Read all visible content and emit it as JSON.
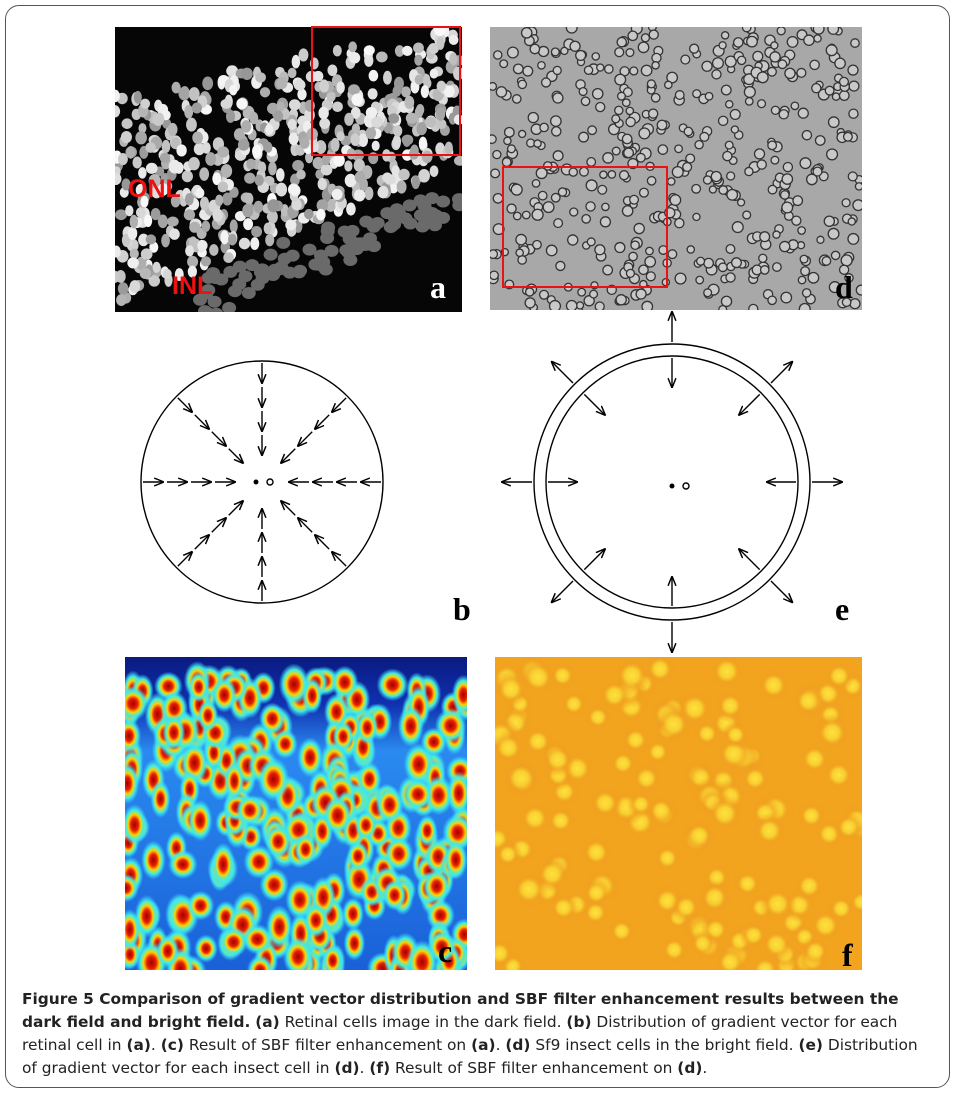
{
  "panels": {
    "a": {
      "label": "a",
      "annotations": [
        "ONL",
        "INL"
      ]
    },
    "b": {
      "label": "b"
    },
    "c": {
      "label": "c"
    },
    "d": {
      "label": "d"
    },
    "e": {
      "label": "e"
    },
    "f": {
      "label": "f"
    }
  },
  "caption": {
    "title": "Figure 5 Comparison of gradient vector distribution and SBF filter enhancement results between the dark field and bright field.",
    "parts": [
      "(a)",
      "Retinal cells image in the dark field.",
      "(b)",
      "Distribution of gradient vector for each retinal cell in",
      "(a)",
      ".",
      "(c)",
      "Result of SBF filter enhancement on",
      "(a)",
      ".",
      "(d)",
      "Sf9 insect cells in the bright field.",
      "(e)",
      "Distribution of gradient vector for each insect cell in",
      "(d)",
      ".",
      "(f)",
      "Result of SBF filter enhancement on",
      "(d)",
      "."
    ]
  }
}
